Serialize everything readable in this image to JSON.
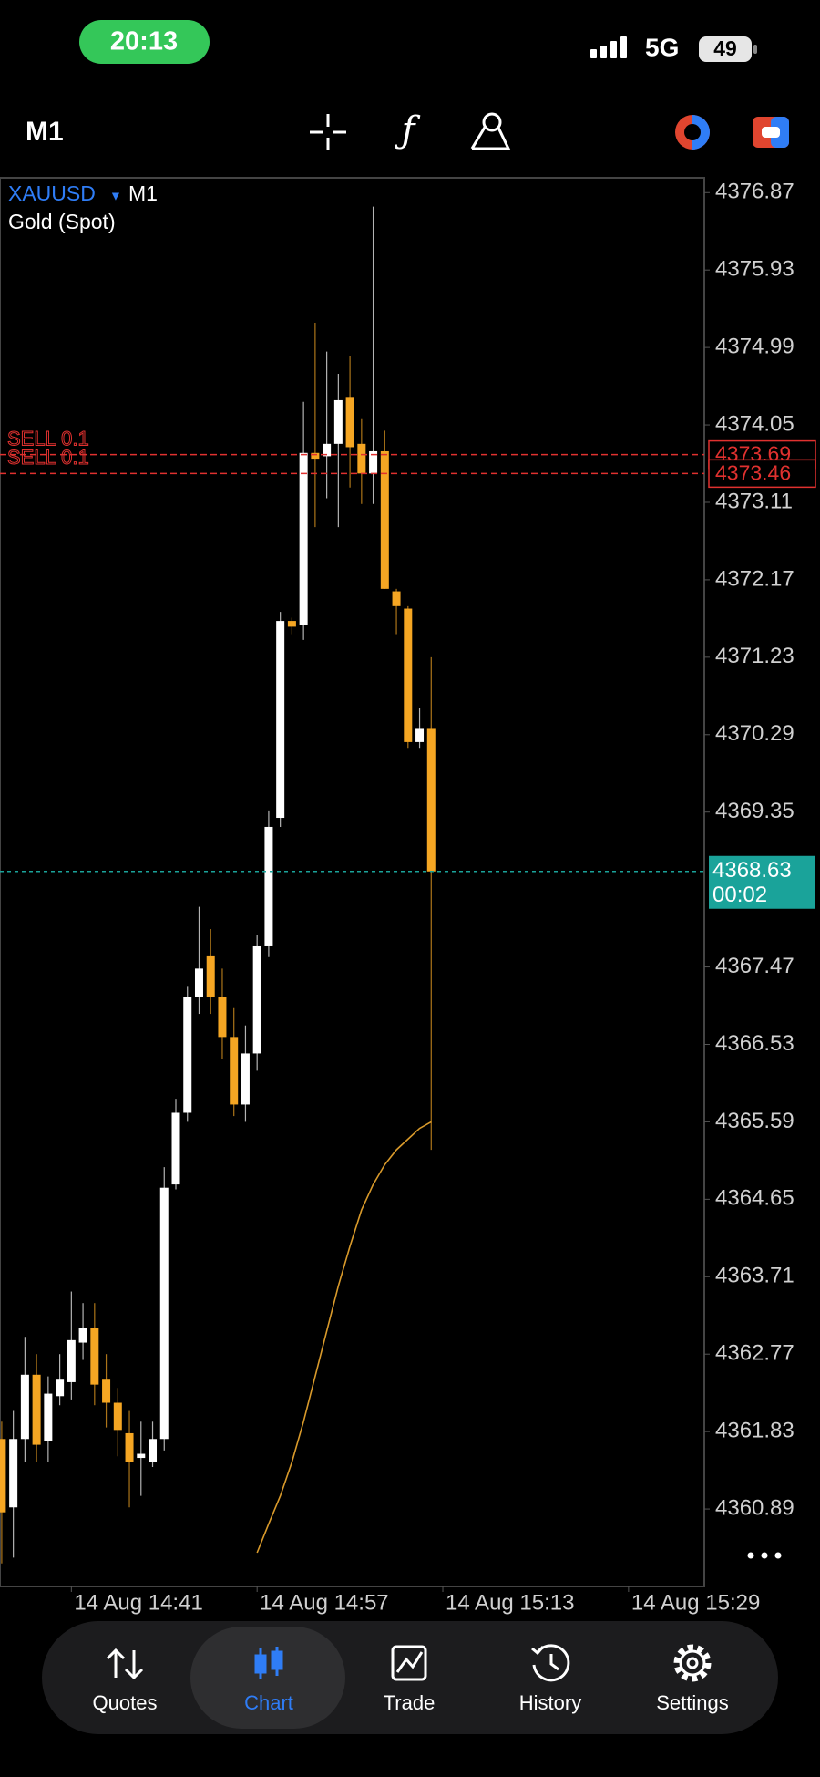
{
  "status_bar": {
    "time": "20:13",
    "network": "5G",
    "battery": "49"
  },
  "toolbar": {
    "timeframe": "M1"
  },
  "chart_data": {
    "type": "candlestick",
    "symbol": "XAUUSD",
    "timeframe": "M1",
    "description": "Gold (Spot)",
    "categories": [
      null,
      null,
      null,
      null,
      null,
      null,
      "14 Aug 14:41",
      null,
      null,
      null,
      null,
      null,
      null,
      null,
      null,
      null,
      null,
      null,
      null,
      null,
      null,
      null,
      "14 Aug 14:57",
      null,
      null,
      null,
      null,
      null,
      null,
      null,
      null,
      null,
      null,
      null,
      null,
      null,
      null,
      null,
      "14 Aug 15:13",
      null,
      null,
      null,
      null,
      null,
      null,
      null,
      null,
      null,
      null,
      null,
      null,
      null,
      null,
      null,
      "14 Aug 15:29"
    ],
    "open": [
      4361.74,
      4360.91,
      4361.74,
      4362.52,
      4361.71,
      4362.26,
      4362.43,
      4362.91,
      4363.09,
      4362.46,
      4362.18,
      4361.81,
      4361.51,
      4361.46,
      4361.74,
      4364.83,
      4365.7,
      4367.1,
      4367.61,
      4367.1,
      4366.62,
      4365.8,
      4366.42,
      4367.72,
      4369.28,
      4371.67,
      4371.62,
      4373.71,
      4373.67,
      4373.82,
      4374.39,
      4373.82,
      4373.46,
      4373.73,
      4372.03,
      4371.82,
      4370.2,
      4370.36,
      null,
      null,
      null,
      null,
      null,
      null,
      null,
      null,
      null,
      null,
      null,
      null,
      null,
      null,
      null,
      null,
      null
    ],
    "high": [
      4361.95,
      4362.08,
      4362.98,
      4362.77,
      4362.5,
      4362.77,
      4363.53,
      4363.39,
      4363.39,
      4362.77,
      4362.36,
      4362.08,
      4361.95,
      4361.95,
      4365.04,
      4365.87,
      4367.24,
      4368.2,
      4367.93,
      4367.45,
      4366.97,
      4366.76,
      4367.86,
      4369.37,
      4371.78,
      4371.71,
      4374.33,
      4375.29,
      4374.94,
      4374.67,
      4374.88,
      4374.12,
      4376.7,
      4373.98,
      4372.06,
      4371.85,
      4370.61,
      4371.23,
      null,
      null,
      null,
      null,
      null,
      null,
      null,
      null,
      null,
      null,
      null,
      null,
      null,
      null,
      null,
      null,
      null
    ],
    "low": [
      4360.23,
      4360.3,
      4361.46,
      4361.46,
      4361.46,
      4362.15,
      4362.22,
      4362.7,
      4362.15,
      4361.88,
      4361.53,
      4360.91,
      4361.05,
      4361.4,
      4361.6,
      4364.77,
      4365.59,
      4366.9,
      4366.9,
      4366.35,
      4365.66,
      4365.59,
      4366.21,
      4367.59,
      4369.17,
      4371.51,
      4371.44,
      4372.81,
      4373.16,
      4372.81,
      4373.29,
      4373.09,
      4373.09,
      4372.06,
      4371.51,
      4370.13,
      4370.13,
      4365.25,
      null,
      null,
      null,
      null,
      null,
      null,
      null,
      null,
      null,
      null,
      null,
      null,
      null,
      null,
      null,
      null,
      null
    ],
    "close": [
      4360.85,
      4361.74,
      4362.52,
      4361.67,
      4362.29,
      4362.46,
      4362.94,
      4363.09,
      4362.4,
      4362.18,
      4361.85,
      4361.46,
      4361.56,
      4361.74,
      4364.79,
      4365.7,
      4367.1,
      4367.45,
      4367.1,
      4366.62,
      4365.8,
      4366.42,
      4367.72,
      4369.17,
      4371.67,
      4371.6,
      4373.71,
      4373.64,
      4373.82,
      4374.35,
      4373.78,
      4373.46,
      4373.73,
      4372.06,
      4371.85,
      4370.2,
      4370.36,
      4368.63,
      null,
      null,
      null,
      null,
      null,
      null,
      null,
      null,
      null,
      null,
      null,
      null,
      null,
      null,
      null,
      null,
      null
    ],
    "up_color": "#ffffff",
    "down_color": "#f5a623",
    "moving_average": {
      "color": "#d99a2b",
      "values": [
        null,
        null,
        null,
        null,
        null,
        null,
        null,
        null,
        null,
        null,
        null,
        null,
        null,
        null,
        null,
        null,
        null,
        null,
        null,
        null,
        null,
        null,
        4360.36,
        4360.71,
        4361.05,
        4361.46,
        4361.95,
        4362.5,
        4363.05,
        4363.6,
        4364.08,
        4364.52,
        4364.83,
        4365.07,
        4365.25,
        4365.38,
        4365.51,
        4365.59,
        null,
        null,
        null,
        null,
        null,
        null,
        null,
        null,
        null,
        null,
        null,
        null,
        null,
        null,
        null,
        null,
        null
      ]
    },
    "ylim": [
      4359.95,
      4377.05
    ],
    "yticks": [
      4376.87,
      4375.93,
      4374.99,
      4374.05,
      4373.11,
      4372.17,
      4371.23,
      4370.29,
      4369.35,
      4367.47,
      4366.53,
      4365.59,
      4364.65,
      4363.71,
      4362.77,
      4361.83,
      4360.89
    ],
    "orders": [
      {
        "name": "SELL 0.1",
        "value": 4373.69
      },
      {
        "name": "SELL 0.1",
        "value": 4373.46
      }
    ],
    "order_color": "#e0312f",
    "current_price": {
      "value": 4368.63,
      "timer": "00:02",
      "color": "#1aa39a"
    }
  },
  "bottom_nav": {
    "items": [
      "Quotes",
      "Chart",
      "Trade",
      "History",
      "Settings"
    ],
    "active": 1
  }
}
